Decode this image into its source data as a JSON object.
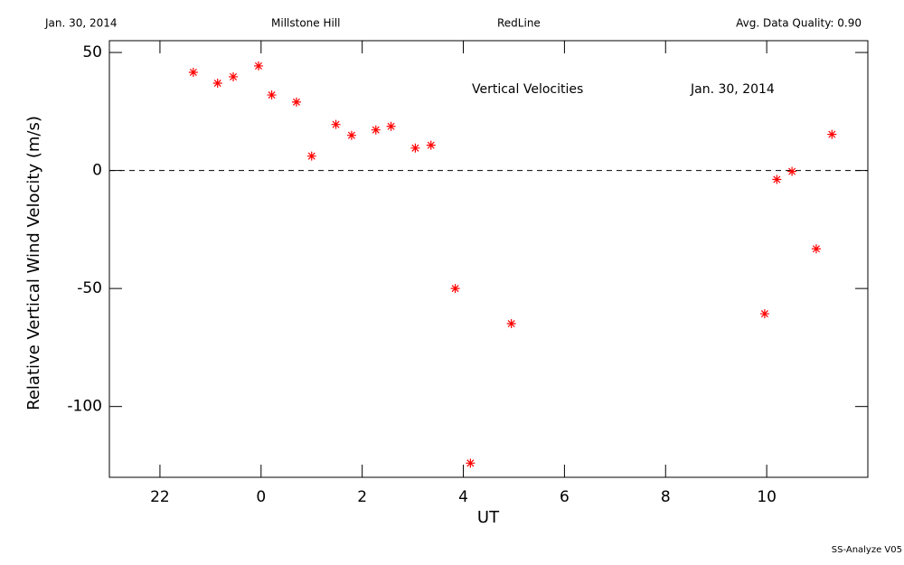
{
  "chart_data": {
    "type": "scatter",
    "header": [
      "Jan. 30, 2014",
      "Millstone Hill",
      "RedLine",
      "Avg. Data Quality: 0.90"
    ],
    "title": "Vertical Velocities",
    "subtitle": "Jan. 30, 2014",
    "footer": "SS-Analyze V05",
    "x_label": "UT",
    "y_label": "Relative Vertical Wind Velocity (m/s)",
    "x": [
      -1.34,
      -0.86,
      -0.55,
      -0.05,
      0.21,
      0.7,
      1.0,
      1.48,
      1.79,
      2.27,
      2.57,
      3.05,
      3.36,
      3.84,
      4.14,
      4.95,
      9.96,
      10.2,
      10.5,
      10.98,
      11.29
    ],
    "values": [
      41.6,
      37,
      39.7,
      44.3,
      32,
      29,
      6.1,
      19.5,
      14.9,
      17.2,
      18.7,
      9.5,
      10.7,
      -50,
      -124,
      -64.9,
      -60.7,
      -3.8,
      -0.4,
      -33.2,
      15.3
    ],
    "color": "#ff0000",
    "reference_line": 0,
    "xlim": [
      -3,
      12
    ],
    "ylim": [
      -130,
      55
    ],
    "xticks": [
      {
        "value": -2,
        "label": "22"
      },
      0,
      2,
      4,
      6,
      8,
      10
    ],
    "yticks": [
      50,
      0,
      -50,
      -100
    ]
  }
}
